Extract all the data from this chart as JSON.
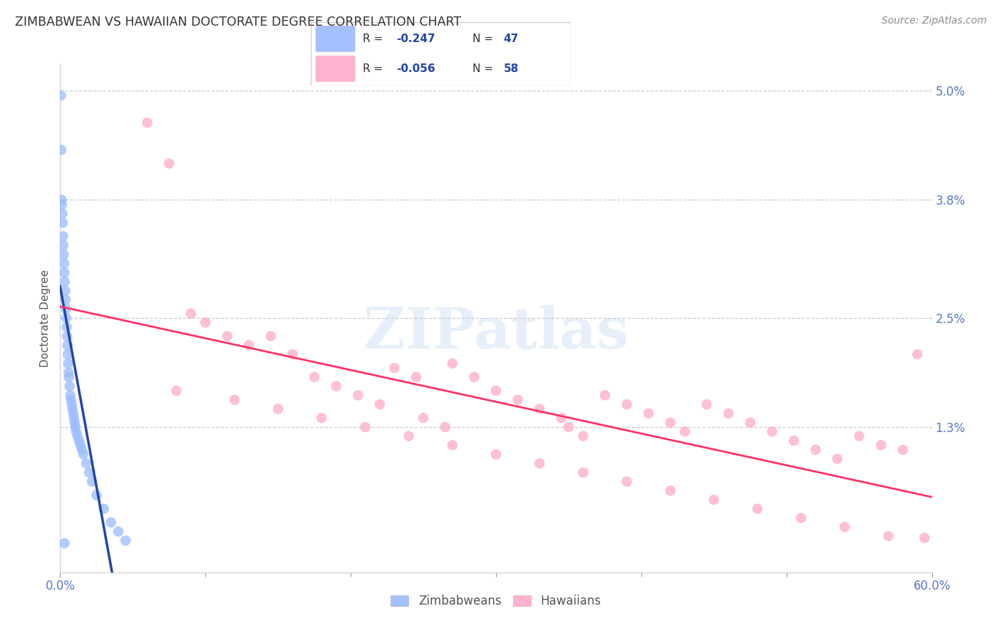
{
  "title": "ZIMBABWEAN VS HAWAIIAN DOCTORATE DEGREE CORRELATION CHART",
  "source": "Source: ZipAtlas.com",
  "ylabel": "Doctorate Degree",
  "xmin": 0.0,
  "xmax": 60.0,
  "ymin": -0.3,
  "ymax": 5.3,
  "legend_R_blue": "R = -0.247",
  "legend_N_blue": "N = 47",
  "legend_R_pink": "R = -0.056",
  "legend_N_pink": "N = 58",
  "blue_color": "#99BBFF",
  "pink_color": "#FFAACC",
  "trend_blue_color": "#2244AA",
  "trend_pink_color": "#FF3366",
  "watermark": "ZIPatlas",
  "right_ytick_vals": [
    0.0,
    1.3,
    2.5,
    3.8,
    5.0
  ],
  "right_ytick_labels": [
    "",
    "1.3%",
    "2.5%",
    "3.8%",
    "5.0%"
  ],
  "zim_x": [
    0.05,
    0.08,
    0.1,
    0.12,
    0.15,
    0.18,
    0.2,
    0.22,
    0.25,
    0.28,
    0.3,
    0.32,
    0.35,
    0.38,
    0.4,
    0.42,
    0.45,
    0.48,
    0.5,
    0.52,
    0.55,
    0.58,
    0.6,
    0.65,
    0.7,
    0.75,
    0.8,
    0.85,
    0.9,
    0.95,
    1.0,
    1.05,
    1.1,
    1.2,
    1.3,
    1.4,
    1.5,
    1.6,
    1.8,
    2.0,
    2.2,
    2.5,
    3.0,
    3.5,
    4.0,
    4.5,
    0.3
  ],
  "zim_y": [
    4.95,
    4.35,
    3.8,
    3.75,
    3.65,
    3.55,
    3.4,
    3.3,
    3.2,
    3.1,
    3.0,
    2.9,
    2.8,
    2.7,
    2.6,
    2.5,
    2.4,
    2.3,
    2.2,
    2.1,
    2.0,
    1.9,
    1.85,
    1.75,
    1.65,
    1.6,
    1.55,
    1.5,
    1.45,
    1.4,
    1.35,
    1.3,
    1.25,
    1.2,
    1.15,
    1.1,
    1.05,
    1.0,
    0.9,
    0.8,
    0.7,
    0.55,
    0.4,
    0.25,
    0.15,
    0.05,
    0.02
  ],
  "haw_x": [
    6.0,
    7.5,
    9.0,
    10.0,
    11.5,
    13.0,
    14.5,
    16.0,
    17.5,
    19.0,
    20.5,
    22.0,
    23.0,
    24.5,
    25.0,
    26.5,
    27.0,
    28.5,
    30.0,
    31.5,
    33.0,
    34.5,
    35.0,
    36.0,
    37.5,
    39.0,
    40.5,
    42.0,
    43.0,
    44.5,
    46.0,
    47.5,
    49.0,
    50.5,
    52.0,
    53.5,
    55.0,
    56.5,
    58.0,
    59.5,
    8.0,
    12.0,
    15.0,
    18.0,
    21.0,
    24.0,
    27.0,
    30.0,
    33.0,
    36.0,
    39.0,
    42.0,
    45.0,
    48.0,
    51.0,
    54.0,
    57.0,
    59.0
  ],
  "haw_y": [
    4.65,
    4.2,
    2.55,
    2.45,
    2.3,
    2.2,
    2.3,
    2.1,
    1.85,
    1.75,
    1.65,
    1.55,
    1.95,
    1.85,
    1.4,
    1.3,
    2.0,
    1.85,
    1.7,
    1.6,
    1.5,
    1.4,
    1.3,
    1.2,
    1.65,
    1.55,
    1.45,
    1.35,
    1.25,
    1.55,
    1.45,
    1.35,
    1.25,
    1.15,
    1.05,
    0.95,
    1.2,
    1.1,
    1.05,
    0.08,
    1.7,
    1.6,
    1.5,
    1.4,
    1.3,
    1.2,
    1.1,
    1.0,
    0.9,
    0.8,
    0.7,
    0.6,
    0.5,
    0.4,
    0.3,
    0.2,
    0.1,
    2.1
  ]
}
